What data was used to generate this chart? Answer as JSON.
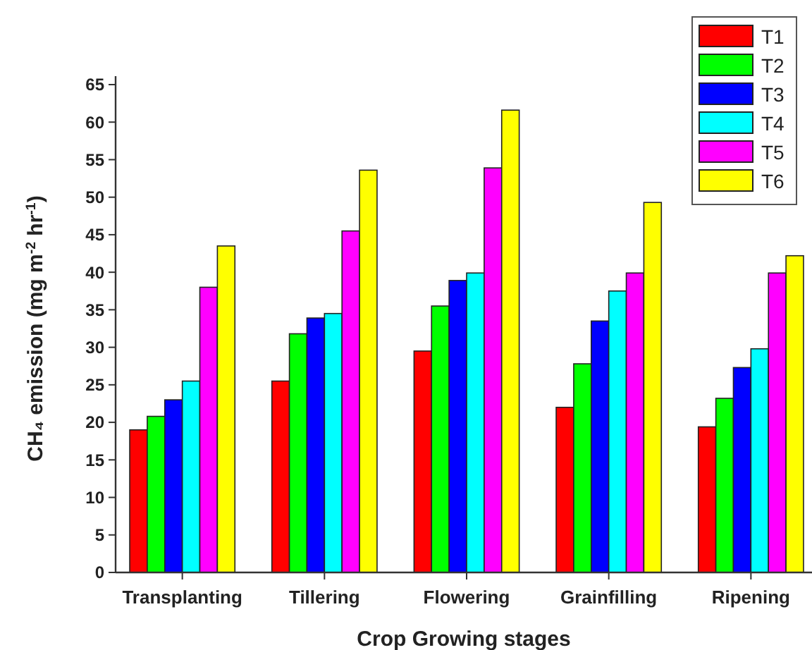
{
  "chart_data": {
    "type": "bar",
    "xlabel": "Crop Growing stages",
    "ylabel": "CH₄ emission (mg m$^{-2}$ hr$^{-1}$)",
    "categories": [
      "Transplanting",
      "Tillering",
      "Flowering",
      "Grainfilling",
      "Ripening"
    ],
    "series": [
      {
        "name": "T1",
        "color": "#ff0000",
        "values": [
          19,
          25.5,
          29.5,
          22,
          19.4
        ]
      },
      {
        "name": "T2",
        "color": "#00ff00",
        "values": [
          20.8,
          31.8,
          35.5,
          27.8,
          23.2
        ]
      },
      {
        "name": "T3",
        "color": "#0000ff",
        "values": [
          23,
          33.9,
          38.9,
          33.5,
          27.3
        ]
      },
      {
        "name": "T4",
        "color": "#00ffff",
        "values": [
          25.5,
          34.5,
          39.9,
          37.5,
          29.8
        ]
      },
      {
        "name": "T5",
        "color": "#ff00ff",
        "values": [
          38,
          45.5,
          53.9,
          39.9,
          39.9
        ]
      },
      {
        "name": "T6",
        "color": "#ffff00",
        "values": [
          43.5,
          53.6,
          61.6,
          49.3,
          42.2
        ]
      }
    ],
    "ylim": [
      0,
      65
    ],
    "yticks": [
      0,
      5,
      10,
      15,
      20,
      25,
      30,
      35,
      40,
      45,
      50,
      55,
      60,
      65
    ],
    "grid": false,
    "legend": "top right"
  }
}
